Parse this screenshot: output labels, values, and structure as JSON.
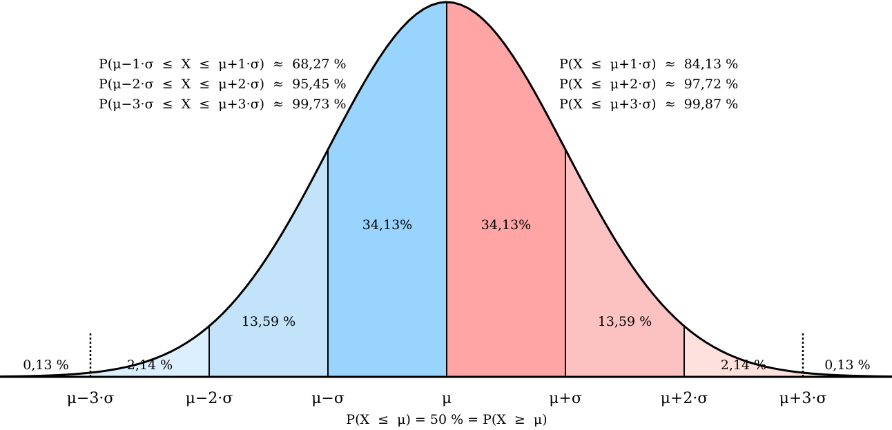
{
  "chart_data": {
    "type": "area",
    "distribution": "normal",
    "xlim": [
      -3.75,
      3.75
    ],
    "ylim": [
      0,
      1
    ],
    "x_ticks": [
      -3,
      -2,
      -1,
      0,
      1,
      2,
      3
    ],
    "x_tick_labels": [
      "μ−3·σ",
      "μ−2·σ",
      "μ−σ",
      "μ",
      "μ+σ",
      "μ+2·σ",
      "μ+3·σ"
    ],
    "regions": [
      {
        "from": -3.75,
        "to": -2,
        "label": "",
        "color": "#dcefff"
      },
      {
        "from": -2,
        "to": -1,
        "label": "13,59 %",
        "color": "#c3e3fb"
      },
      {
        "from": -1,
        "to": 0,
        "label": "34,13%",
        "color": "#99d4ff"
      },
      {
        "from": 0,
        "to": 1,
        "label": "34,13%",
        "color": "#ffa5a5"
      },
      {
        "from": 1,
        "to": 2,
        "label": "13,59 %",
        "color": "#fcc2c2"
      },
      {
        "from": 2,
        "to": 3.75,
        "label": "",
        "color": "#fee0dc"
      }
    ],
    "tail_labels": [
      {
        "x": -3.375,
        "label": "0,13 %"
      },
      {
        "x": -2.5,
        "label": "2,14 %"
      },
      {
        "x": 2.5,
        "label": "2,14 %"
      },
      {
        "x": 3.375,
        "label": "0,13 %"
      }
    ],
    "dotted_markers": [
      -3,
      3
    ],
    "annotations_left": [
      "P(μ−1·σ  ≤  X  ≤  μ+1·σ)  ≈  68,27 %",
      "P(μ−2·σ  ≤  X  ≤  μ+2·σ)  ≈  95,45 %",
      "P(μ−3·σ  ≤  X  ≤  μ+3·σ)  ≈  99,73 %"
    ],
    "annotations_right": [
      "P(X  ≤  μ+1·σ)  ≈  84,13 %",
      "P(X  ≤  μ+2·σ)  ≈  97,72 %",
      "P(X  ≤  μ+3·σ)  ≈  99,87 %"
    ],
    "bottom_caption": "P(X  ≤  μ) = 50 % = P(X  ≥  μ)"
  }
}
